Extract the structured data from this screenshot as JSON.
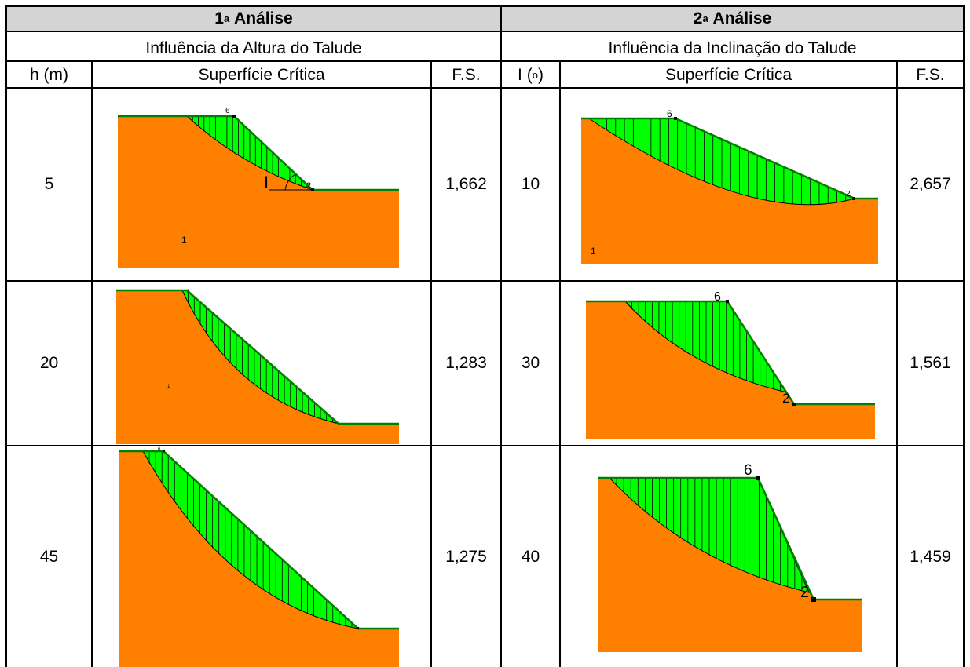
{
  "analysis1": {
    "title_num": "1",
    "title_sup": "a",
    "title_word": "Análise",
    "subtitle": "Influência da Altura do Talude"
  },
  "analysis2": {
    "title_num": "2",
    "title_sup": "a",
    "title_word": "Análise",
    "subtitle": "Influência da Inclinação do Talude"
  },
  "columns": {
    "h": "h (m)",
    "surface1": "Superfície Crítica",
    "fs1": "F.S.",
    "i_letter": "I (",
    "i_sup": "o",
    "i_close": ")",
    "surface2": "Superfície Crítica",
    "fs2": "F.S."
  },
  "rows": [
    {
      "h": "5",
      "fs1": "1,662",
      "i": "10",
      "fs2": "2,657"
    },
    {
      "h": "20",
      "fs1": "1,283",
      "i": "30",
      "fs2": "1,561"
    },
    {
      "h": "45",
      "fs1": "1,275",
      "i": "40",
      "fs2": "1,459"
    }
  ],
  "figures": {
    "f1": {
      "lbl_top": "6",
      "lbl_toe": "2",
      "lbl_mat": "1",
      "lbl_angle": "I"
    },
    "f2": {
      "lbl_top": "6",
      "lbl_toe": "2",
      "lbl_mat": "1"
    },
    "f3": {
      "lbl_top": "3",
      "lbl_mat": "1"
    },
    "f4": {
      "lbl_top": "6",
      "lbl_toe": "2"
    },
    "f5": {
      "lbl_top": "6"
    },
    "f6": {
      "lbl_top": "6",
      "lbl_toe": "2"
    }
  },
  "colors": {
    "soil": "#ff8000",
    "failure_mass": "#00ff00",
    "ground_line": "#008000",
    "header_bg": "#d4d4d4"
  }
}
